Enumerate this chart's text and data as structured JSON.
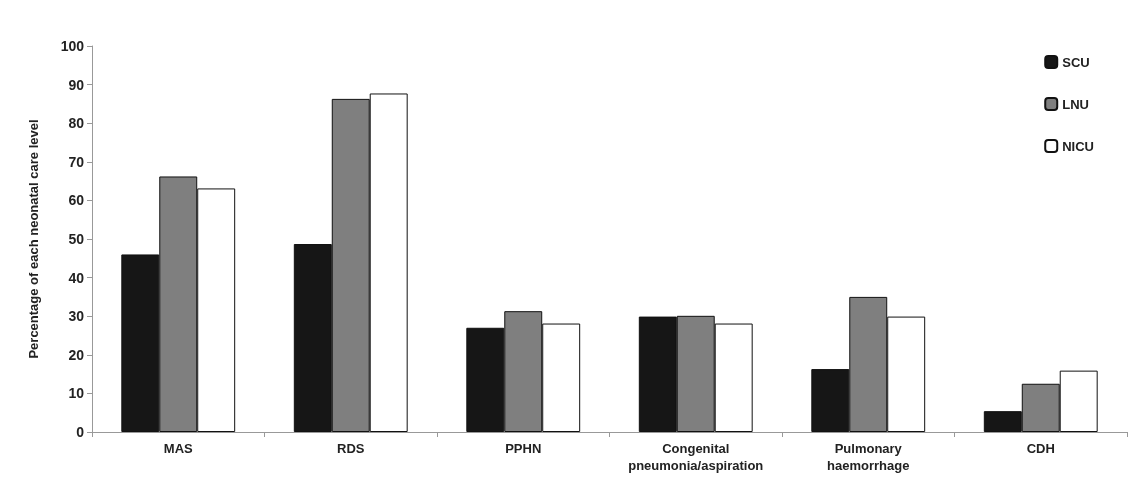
{
  "chart_data": {
    "type": "bar",
    "ylabel": "Percentage of each neonatal care level",
    "categories": [
      "MAS",
      "RDS",
      "PPHN",
      "Congenital\npneumonia/aspiration",
      "Pulmonary\nhaemorrhage",
      "CDH"
    ],
    "series": [
      {
        "name": "SCU",
        "color": "#161616",
        "values": [
          46,
          48.7,
          27,
          29.9,
          16.3,
          5.4
        ]
      },
      {
        "name": "LNU",
        "color": "#7f7f7f",
        "values": [
          66.2,
          86.3,
          31.3,
          30.1,
          35,
          12.5
        ]
      },
      {
        "name": "NICU",
        "color": "#ffffff",
        "values": [
          63.1,
          87.7,
          28.1,
          28.1,
          29.9,
          15.9
        ]
      }
    ],
    "ylim": [
      0,
      100
    ],
    "yticks": [
      0,
      10,
      20,
      30,
      40,
      50,
      60,
      70,
      80,
      90,
      100
    ],
    "grid": false,
    "legend": "top right"
  }
}
